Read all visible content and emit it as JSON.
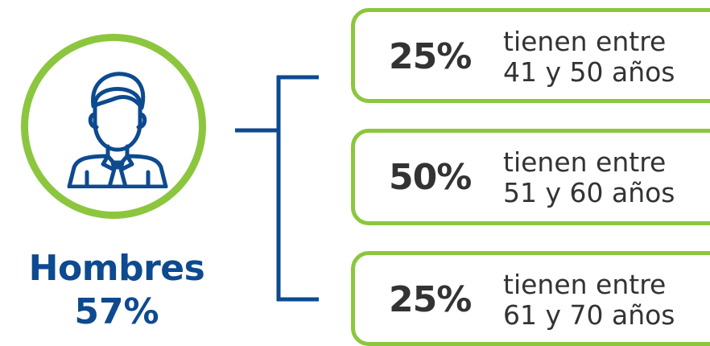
{
  "left": {
    "title": "Hombres",
    "total": "57%",
    "icon": "man-with-tie-icon"
  },
  "colors": {
    "accent_green": "#8cc63f",
    "brand_blue": "#0d4a8f",
    "text_dark": "#333333"
  },
  "groups": [
    {
      "percent": "25%",
      "line1": "tienen entre",
      "line2": "41 y 50 años"
    },
    {
      "percent": "50%",
      "line1": "tienen entre",
      "line2": "51 y 60 años"
    },
    {
      "percent": "25%",
      "line1": "tienen entre",
      "line2": "61 y 70 años"
    }
  ]
}
